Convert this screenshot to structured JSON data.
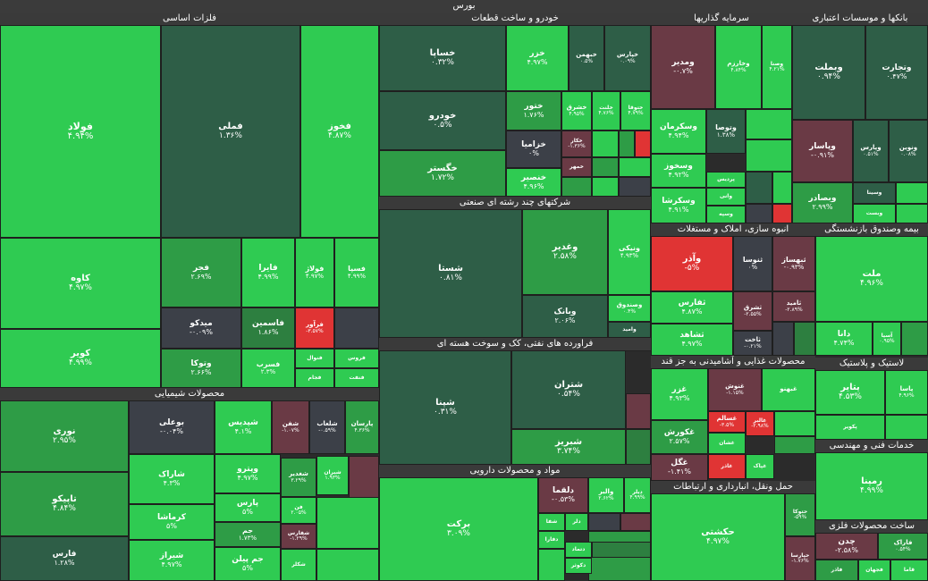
{
  "page": {
    "title": "بورس"
  },
  "colors": {
    "up_strong": "#2fcb52",
    "up_med": "#2e9c46",
    "up_dark": "#2d7f40",
    "flat_dark": "#2e5e47",
    "neutral": "#3c4048",
    "down_dark": "#6a3a45",
    "down_strong": "#e03434"
  },
  "sectors": [
    {
      "name": "فلزات اساسی"
    },
    {
      "name": "خودرو و ساخت قطعات"
    },
    {
      "name": "سرمایه گذاریها"
    },
    {
      "name": "بانکها و موسسات اعتباری"
    },
    {
      "name": "شرکتهای چند رشته ای صنعتی"
    },
    {
      "name": "انبوه سازی، املاک و مستغلات"
    },
    {
      "name": "بیمه وصندوق بازنشستگی"
    },
    {
      "name": "فراورده های نفتی، کک و سوخت هسته ای"
    },
    {
      "name": "محصولات غذایی و آشامیدنی به جز قند"
    },
    {
      "name": "لاستیک و پلاستیک"
    },
    {
      "name": "محصولات شیمیایی"
    },
    {
      "name": "مواد و محصولات دارویی"
    },
    {
      "name": "حمل ونقل، انبارداری و ارتباطات"
    },
    {
      "name": "خدمات فنی و مهندسی"
    },
    {
      "name": "ساخت محصولات فلزی"
    }
  ],
  "tiles": [
    {
      "symbol": "فولاد",
      "change": "۴.۹۴%"
    },
    {
      "symbol": "فملی",
      "change": "۱.۳۶%"
    },
    {
      "symbol": "فخوز",
      "change": "۴.۸۷%"
    },
    {
      "symbol": "کاوه",
      "change": "۴.۹۷%"
    },
    {
      "symbol": "فجر",
      "change": "۲.۶۹%"
    },
    {
      "symbol": "فایرا",
      "change": "۴.۹۹%"
    },
    {
      "symbol": "فولاژ",
      "change": "۴.۹۷%"
    },
    {
      "symbol": "فسپا",
      "change": "۴.۹۹%"
    },
    {
      "symbol": "میدکو",
      "change": "-۰.۰۹%"
    },
    {
      "symbol": "فاسمین",
      "change": "۱.۸۶%"
    },
    {
      "symbol": "فرآور",
      "change": "-۳.۵۷%"
    },
    {
      "symbol": "کویر",
      "change": "۴.۹۹%"
    },
    {
      "symbol": "وتوکا",
      "change": "۲.۶۶%"
    },
    {
      "symbol": "فسرب",
      "change": "۲.۳%"
    },
    {
      "symbol": "فنوال",
      "change": ""
    },
    {
      "symbol": "فروس",
      "change": ""
    },
    {
      "symbol": "فجام",
      "change": ""
    },
    {
      "symbol": "فنفت",
      "change": ""
    },
    {
      "symbol": "خساپا",
      "change": "۰.۳۲%"
    },
    {
      "symbol": "خزر",
      "change": "۴.۹۷%"
    },
    {
      "symbol": "خبهمن",
      "change": "۰.۵%"
    },
    {
      "symbol": "خپارس",
      "change": "۰.۰۹%"
    },
    {
      "symbol": "خودرو",
      "change": "۰.۵%"
    },
    {
      "symbol": "ختور",
      "change": "۱.۷۶%"
    },
    {
      "symbol": "خشرق",
      "change": "۴.۹۵%"
    },
    {
      "symbol": "خلنت",
      "change": "۴.۷۶%"
    },
    {
      "symbol": "ختوقا",
      "change": "۴.۷۹%"
    },
    {
      "symbol": "خزامیا",
      "change": "۰%"
    },
    {
      "symbol": "خکار",
      "change": "-۱.۳۶%"
    },
    {
      "symbol": "خگستر",
      "change": "۱.۷۲%"
    },
    {
      "symbol": "خنصیر",
      "change": "۴.۹۶%"
    },
    {
      "symbol": "خمهر",
      "change": ""
    },
    {
      "symbol": "ومدیر",
      "change": "-۰.۷%"
    },
    {
      "symbol": "وخارزم",
      "change": "۴.۸۴%"
    },
    {
      "symbol": "وصنا",
      "change": "۴.۲۱%"
    },
    {
      "symbol": "وسکرمان",
      "change": "۴.۹۴%"
    },
    {
      "symbol": "وتوصا",
      "change": "۱.۳۸%"
    },
    {
      "symbol": "وسخوز",
      "change": "۴.۹۲%"
    },
    {
      "symbol": "پردیس",
      "change": ""
    },
    {
      "symbol": "وسکرشا",
      "change": "۴.۹۱%"
    },
    {
      "symbol": "وانی",
      "change": ""
    },
    {
      "symbol": "وسپه",
      "change": ""
    },
    {
      "symbol": "وبملت",
      "change": "۰.۹۴%"
    },
    {
      "symbol": "وتجارت",
      "change": "۰.۴۷%"
    },
    {
      "symbol": "وپاسار",
      "change": "-۰.۹۱%"
    },
    {
      "symbol": "وپارس",
      "change": "۰.۵۱%"
    },
    {
      "symbol": "ونوین",
      "change": "۰.۰۸%"
    },
    {
      "symbol": "وبصادر",
      "change": "۲.۹۹%"
    },
    {
      "symbol": "وسینا",
      "change": ""
    },
    {
      "symbol": "وبست",
      "change": ""
    },
    {
      "symbol": "شستا",
      "change": "۰.۸۱%"
    },
    {
      "symbol": "وغدیر",
      "change": "۲.۵۸%"
    },
    {
      "symbol": "ونیکی",
      "change": "۴.۹۳%"
    },
    {
      "symbol": "وبانک",
      "change": "۲.۰۶%"
    },
    {
      "symbol": "وصندوق",
      "change": "۰.۴%"
    },
    {
      "symbol": "وامید",
      "change": ""
    },
    {
      "symbol": "وآذر",
      "change": "-۵%"
    },
    {
      "symbol": "ثنوسا",
      "change": "۰%"
    },
    {
      "symbol": "ثبهساز",
      "change": "-۰.۹۳%"
    },
    {
      "symbol": "ثفارس",
      "change": "۴.۸۷%"
    },
    {
      "symbol": "ثشرق",
      "change": "-۲.۵۵%"
    },
    {
      "symbol": "ثامید",
      "change": "-۲.۸۹%"
    },
    {
      "symbol": "ثشاهد",
      "change": "۴.۹۷%"
    },
    {
      "symbol": "ثاخت",
      "change": "-۰.۲۱%"
    },
    {
      "symbol": "ملت",
      "change": "۴.۹۶%"
    },
    {
      "symbol": "دانا",
      "change": "۴.۷۴%"
    },
    {
      "symbol": "آسیا",
      "change": "۰.۹۵%"
    },
    {
      "symbol": "شپنا",
      "change": "۰.۳۱%"
    },
    {
      "symbol": "شتران",
      "change": "۰.۵۴%"
    },
    {
      "symbol": "شبریز",
      "change": "۳.۷۴%"
    },
    {
      "symbol": "غزر",
      "change": "۴.۹۳%"
    },
    {
      "symbol": "غنوش",
      "change": "-۱.۱۵%"
    },
    {
      "symbol": "غبهنو",
      "change": ""
    },
    {
      "symbol": "غکورش",
      "change": "۲.۵۷%"
    },
    {
      "symbol": "غسالم",
      "change": "-۳.۵%"
    },
    {
      "symbol": "غالبر",
      "change": "-۲.۹۸%"
    },
    {
      "symbol": "غشان",
      "change": ""
    },
    {
      "symbol": "غگل",
      "change": "-۱.۴۱%"
    },
    {
      "symbol": "غاذر",
      "change": ""
    },
    {
      "symbol": "غپاک",
      "change": ""
    },
    {
      "symbol": "پتایر",
      "change": "۴.۵۳%"
    },
    {
      "symbol": "پاسا",
      "change": "۴.۹۶%"
    },
    {
      "symbol": "پکویر",
      "change": ""
    },
    {
      "symbol": "نوری",
      "change": "۲.۹۵%"
    },
    {
      "symbol": "بوعلی",
      "change": "-۰.۰۴%"
    },
    {
      "symbol": "شپدیس",
      "change": "۴.۱%"
    },
    {
      "symbol": "شفن",
      "change": "-۱.۰۷%"
    },
    {
      "symbol": "شلعاب",
      "change": "-۰.۵۹%"
    },
    {
      "symbol": "پارسان",
      "change": "۴.۳۶%"
    },
    {
      "symbol": "تاپیکو",
      "change": "۴.۸۴%"
    },
    {
      "symbol": "شاراک",
      "change": "۴.۳%"
    },
    {
      "symbol": "وپترو",
      "change": "۴.۹۷%"
    },
    {
      "symbol": "شغدیر",
      "change": "۳.۲۹%"
    },
    {
      "symbol": "شیران",
      "change": "۱.۹۳%"
    },
    {
      "symbol": "پارس",
      "change": "۵%"
    },
    {
      "symbol": "کرماشا",
      "change": "۵%"
    },
    {
      "symbol": "فن",
      "change": "۲.۰۵%"
    },
    {
      "symbol": "جم",
      "change": "۱.۷۳%"
    },
    {
      "symbol": "شفارس",
      "change": "-۱.۲۹%"
    },
    {
      "symbol": "فارس",
      "change": "۱.۲۸%"
    },
    {
      "symbol": "شیراز",
      "change": "۴.۹۷%"
    },
    {
      "symbol": "جم پیلن",
      "change": "۵%"
    },
    {
      "symbol": "شکلر",
      "change": ""
    },
    {
      "symbol": "برکت",
      "change": "۳.۰۹%"
    },
    {
      "symbol": "دلقما",
      "change": "-۰.۵۳%"
    },
    {
      "symbol": "والبر",
      "change": "۲.۶۲%"
    },
    {
      "symbol": "دیلر",
      "change": "۴.۹۹%"
    },
    {
      "symbol": "دلر",
      "change": ""
    },
    {
      "symbol": "شفا",
      "change": ""
    },
    {
      "symbol": "دفارا",
      "change": ""
    },
    {
      "symbol": "دتماد",
      "change": ""
    },
    {
      "symbol": "دکوثر",
      "change": ""
    },
    {
      "symbol": "حکشتی",
      "change": "۴.۹۷%"
    },
    {
      "symbol": "حتوکا",
      "change": "-۵۹%"
    },
    {
      "symbol": "حپارسا",
      "change": "-۱.۷۶%"
    },
    {
      "symbol": "رمپنا",
      "change": "۴.۹۹%"
    },
    {
      "symbol": "چدن",
      "change": "-۲.۵۸%"
    },
    {
      "symbol": "فاراک",
      "change": "۰.۵۴%"
    },
    {
      "symbol": "فاذر",
      "change": ""
    },
    {
      "symbol": "فجهان",
      "change": ""
    },
    {
      "symbol": "قاما",
      "change": ""
    }
  ]
}
